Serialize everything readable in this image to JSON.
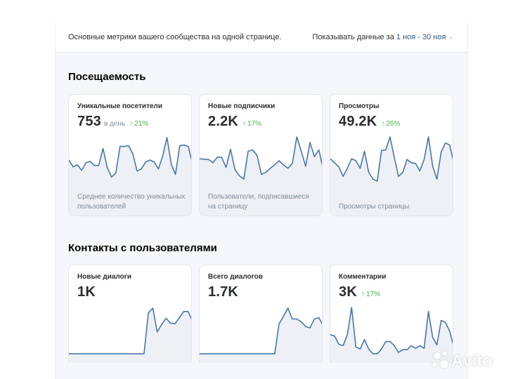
{
  "header": {
    "subtitle": "Основные метрики вашего сообщества на одной странице.",
    "period_label": "Показывать данные за ",
    "period_range": "1 ноя - 30 ноя",
    "chevron_icon": "chevron-down-icon"
  },
  "sections": [
    {
      "title": "Посещаемость",
      "cards": [
        {
          "title": "Уникальные посетители",
          "value": "753",
          "unit": "в день",
          "delta": "21%",
          "delta_icon": "arrow-up-icon",
          "description": "Среднее количество уникальных пользователей",
          "series": [
            34,
            44,
            41,
            49,
            38,
            36,
            42,
            42,
            17,
            45,
            59,
            53,
            14,
            14,
            13,
            25,
            50,
            47,
            37,
            34,
            37,
            47,
            28,
            1,
            40,
            55,
            13,
            12,
            14,
            40
          ]
        },
        {
          "title": "Новые подписчики",
          "value": "2.2K",
          "unit": "",
          "delta": "17%",
          "delta_icon": "arrow-up-icon",
          "description": "Пользователи, подписавшиеся на страницу",
          "series": [
            32,
            33,
            33,
            38,
            30,
            30,
            45,
            18,
            48,
            57,
            62,
            21,
            19,
            27,
            55,
            52,
            46,
            41,
            35,
            41,
            46,
            39,
            0,
            21,
            43,
            8,
            29,
            19,
            48
          ]
        },
        {
          "title": "Просмотры",
          "value": "49.2K",
          "unit": "",
          "delta": "26%",
          "delta_icon": "arrow-up-icon",
          "description": "Просмотры страницы",
          "series": [
            32,
            38,
            44,
            58,
            46,
            32,
            35,
            46,
            21,
            52,
            62,
            65,
            20,
            19,
            0,
            30,
            58,
            52,
            33,
            38,
            39,
            50,
            33,
            0,
            43,
            62,
            22,
            9,
            12,
            39
          ]
        }
      ]
    },
    {
      "title": "Контакты с пользователями",
      "cards": [
        {
          "title": "Новые диалоги",
          "value": "1K",
          "unit": "",
          "delta": "",
          "description": "",
          "series": [
            68,
            68,
            68,
            68,
            68,
            68,
            68,
            68,
            68,
            68,
            68,
            68,
            68,
            68,
            68,
            68,
            68,
            68,
            8,
            1,
            36,
            25,
            16,
            23,
            24,
            15,
            6,
            6,
            21
          ]
        },
        {
          "title": "Всего диалогов",
          "value": "1.7K",
          "unit": "",
          "delta": "",
          "description": "",
          "series": [
            68,
            68,
            68,
            68,
            68,
            68,
            68,
            68,
            68,
            68,
            68,
            68,
            68,
            68,
            68,
            68,
            68,
            68,
            24,
            13,
            1,
            17,
            17,
            21,
            28,
            30,
            17,
            15,
            27
          ]
        },
        {
          "title": "Комментарии",
          "value": "3K",
          "unit": "",
          "delta": "17%",
          "delta_icon": "arrow-up-icon",
          "description": "",
          "series": [
            40,
            42,
            54,
            56,
            40,
            0,
            58,
            61,
            47,
            61,
            68,
            68,
            61,
            50,
            50,
            56,
            66,
            62,
            62,
            56,
            60,
            56,
            60,
            6,
            44,
            55,
            19,
            22,
            35,
            59
          ]
        }
      ]
    }
  ],
  "watermark": "Avito",
  "colors": {
    "line": "#4a76a8",
    "fill": "#edf0f5",
    "delta_positive": "#4bb34b",
    "link": "#2a5885"
  }
}
